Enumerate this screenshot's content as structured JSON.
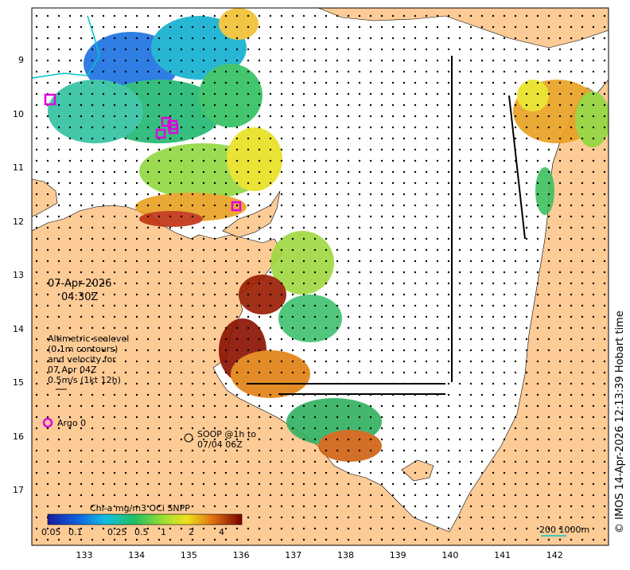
{
  "date": "07-Apr-2026",
  "time": "04:30Z",
  "legend": {
    "line1": "Altimetric sealevel",
    "line2": "(0.1m contours)",
    "line3": "and velocity for",
    "line4": "07 Apr 04Z",
    "line5": "0.5m/s (1kt 12h)"
  },
  "argo_label": "Argo 0",
  "soop_label_1": "SOOP @1h to",
  "soop_label_2": "07/04 06Z",
  "colorbar": {
    "title": "Chl-a mg/m3 OCi SNPP",
    "ticks": [
      "0.05",
      "0.1",
      "0.25",
      "0.5",
      "1",
      "2",
      "4"
    ]
  },
  "scale_label": "200  1000m",
  "credit": "© IMOS 14-Apr-2026 12:13:39 Hobart time",
  "axes": {
    "x_ticks": [
      "133",
      "134",
      "135",
      "136",
      "137",
      "138",
      "139",
      "140",
      "141",
      "142"
    ],
    "y_ticks": [
      "9",
      "10",
      "11",
      "12",
      "13",
      "14",
      "15",
      "16",
      "17"
    ]
  },
  "colors": {
    "land": "#fdcb96",
    "ocean": "#ffffff",
    "argo": "#e000e0",
    "accent_line": "#00c8c8"
  }
}
